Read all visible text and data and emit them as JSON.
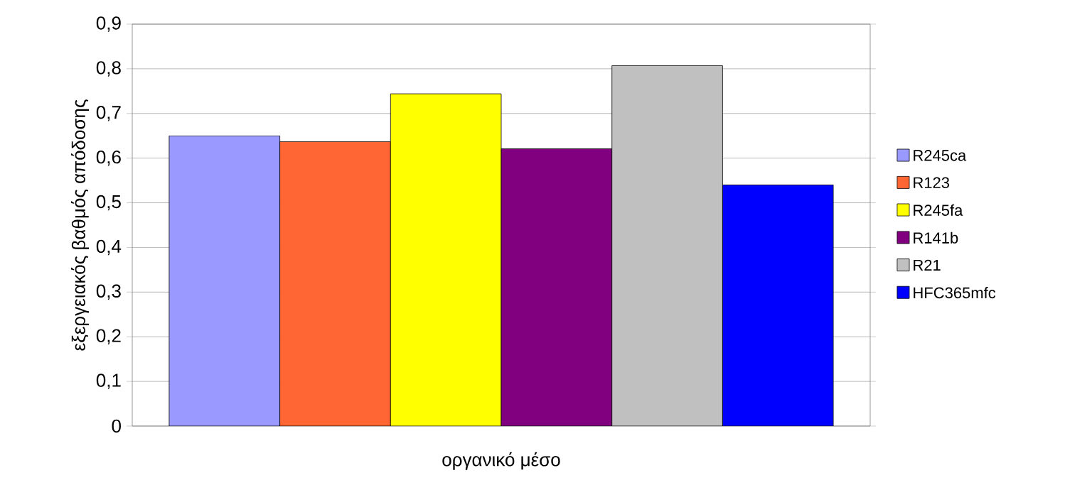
{
  "chart_data": {
    "type": "bar",
    "xlabel": "οργανικό μέσο",
    "ylabel": "εξεργειακός βαθμός απόδοσης",
    "categories": [
      null
    ],
    "series": [
      {
        "name": "R245ca",
        "color": "#9999ff",
        "values": [
          0.65
        ]
      },
      {
        "name": "R123",
        "color": "#ff6633",
        "values": [
          0.637
        ]
      },
      {
        "name": "R245fa",
        "color": "#ffff00",
        "values": [
          0.744
        ]
      },
      {
        "name": "R141b",
        "color": "#800080",
        "values": [
          0.621
        ]
      },
      {
        "name": "R21",
        "color": "#c0c0c0",
        "values": [
          0.807
        ]
      },
      {
        "name": "HFC365mfc",
        "color": "#0000ff",
        "values": [
          0.54
        ]
      }
    ],
    "ylim": [
      0,
      0.9
    ],
    "yticks": [
      {
        "value": 0,
        "label": "0"
      },
      {
        "value": 0.1,
        "label": "0,1"
      },
      {
        "value": 0.2,
        "label": "0,2"
      },
      {
        "value": 0.3,
        "label": "0,3"
      },
      {
        "value": 0.4,
        "label": "0,4"
      },
      {
        "value": 0.5,
        "label": "0,5"
      },
      {
        "value": 0.6,
        "label": "0,6"
      },
      {
        "value": 0.7,
        "label": "0,7"
      },
      {
        "value": 0.8,
        "label": "0,8"
      },
      {
        "value": 0.9,
        "label": "0,9"
      }
    ],
    "grid": "y",
    "legend": "right"
  }
}
